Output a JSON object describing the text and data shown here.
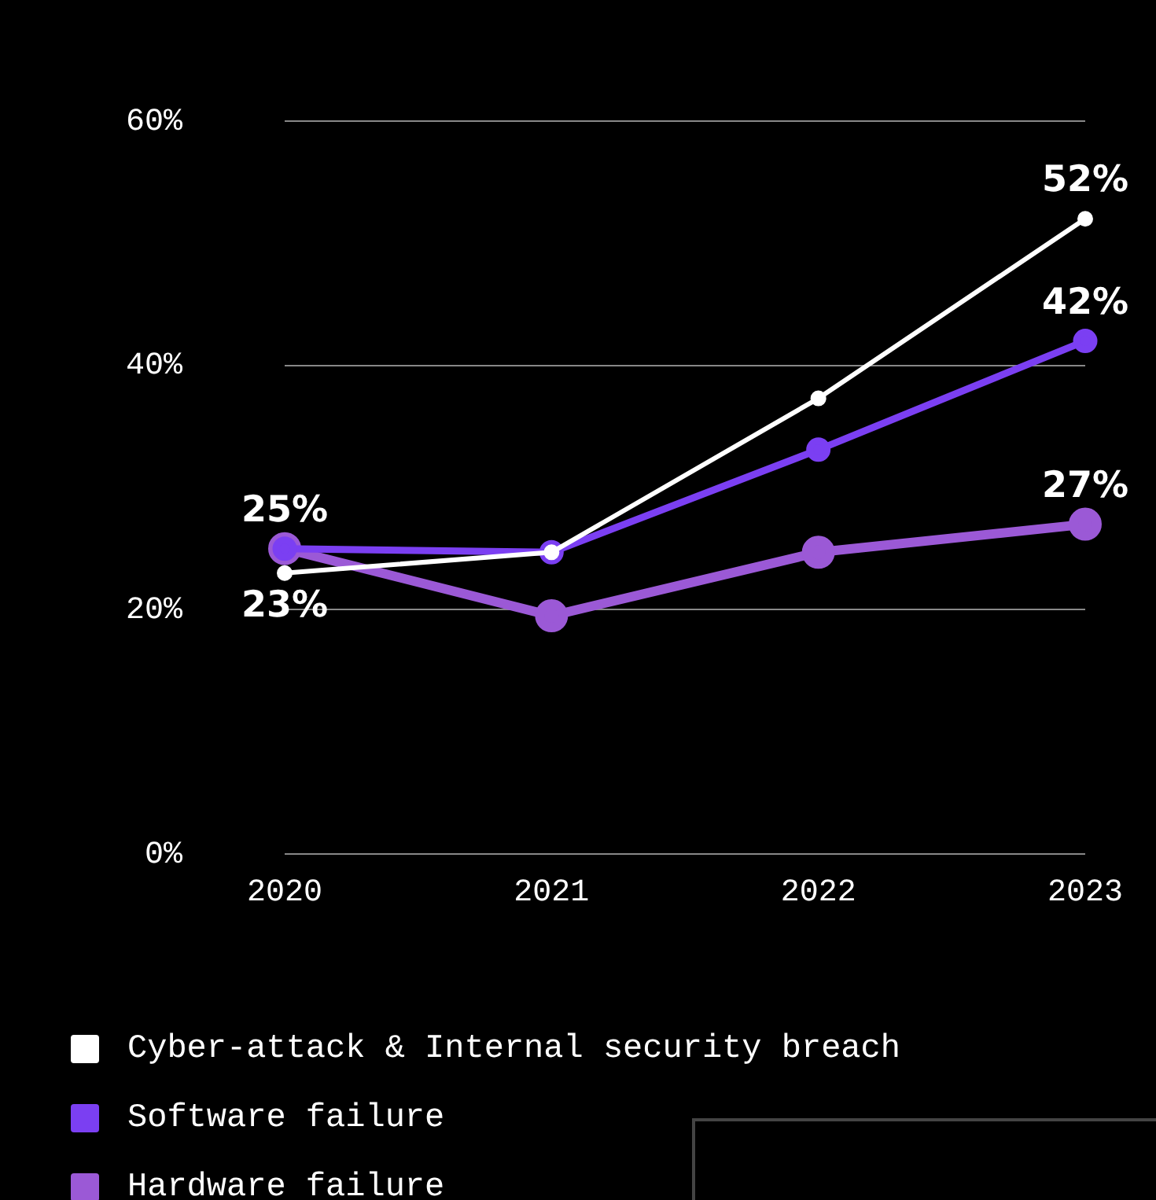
{
  "chart_data": {
    "type": "line",
    "categories": [
      "2020",
      "2021",
      "2022",
      "2023"
    ],
    "series": [
      {
        "name": "Cyber-attack & Internal security breach",
        "color": "#ffffff",
        "values": [
          23,
          24.7,
          37.3,
          52
        ],
        "value_labels": [
          "23%",
          null,
          null,
          "52%"
        ]
      },
      {
        "name": "Software failure",
        "color": "#7b3ff2",
        "values": [
          25,
          24.7,
          33.1,
          42
        ],
        "value_labels": [
          "25%",
          null,
          null,
          "42%"
        ]
      },
      {
        "name": "Hardware failure",
        "color": "#9b59d6",
        "values": [
          25,
          19.5,
          24.7,
          27
        ],
        "value_labels": [
          null,
          null,
          null,
          "27%"
        ]
      }
    ],
    "ylim": [
      0,
      60
    ],
    "yticks": [
      {
        "value": 0,
        "label": "0%"
      },
      {
        "value": 20,
        "label": "20%"
      },
      {
        "value": 40,
        "label": "40%"
      },
      {
        "value": 60,
        "label": "60%"
      }
    ],
    "grid": "y",
    "legend": "bottom",
    "marker": "circle",
    "line_style": "solid"
  }
}
